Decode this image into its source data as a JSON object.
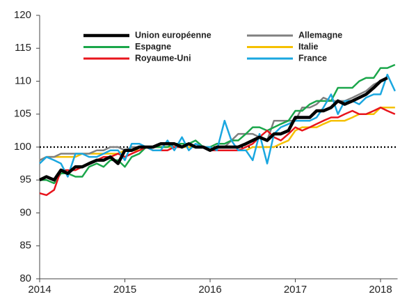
{
  "chart_data": {
    "type": "line",
    "x": [
      2014,
      2014.08,
      2014.17,
      2014.25,
      2014.33,
      2014.42,
      2014.5,
      2014.58,
      2014.67,
      2014.75,
      2014.83,
      2014.92,
      2015,
      2015.08,
      2015.17,
      2015.25,
      2015.33,
      2015.42,
      2015.5,
      2015.58,
      2015.67,
      2015.75,
      2015.83,
      2015.92,
      2016,
      2016.08,
      2016.17,
      2016.25,
      2016.33,
      2016.42,
      2016.5,
      2016.58,
      2016.67,
      2016.75,
      2016.83,
      2016.92,
      2017,
      2017.08,
      2017.17,
      2017.25,
      2017.33,
      2017.42,
      2017.5,
      2017.58,
      2017.67,
      2017.75,
      2017.83,
      2017.92,
      2018,
      2018.08,
      2018.17
    ],
    "series": [
      {
        "name": "Union européenne",
        "color": "#000000",
        "values": [
          95,
          95.5,
          95,
          96.5,
          96,
          97,
          97,
          97.5,
          98,
          98,
          98.5,
          97.5,
          99.5,
          99.5,
          100,
          100,
          100,
          100.5,
          100.5,
          100.5,
          100,
          100.5,
          100,
          100,
          99.5,
          100,
          100,
          100,
          100,
          100.5,
          101,
          101.5,
          101,
          102,
          102,
          102.5,
          104.5,
          104.5,
          104.5,
          105.5,
          105.5,
          106,
          107,
          106.5,
          107,
          107.5,
          108,
          109,
          110,
          110.5,
          null
        ]
      },
      {
        "name": "Allemagne",
        "color": "#808080",
        "values": [
          98,
          98.5,
          98.5,
          99,
          99,
          99,
          99,
          99,
          99.5,
          99.5,
          100,
          100,
          99.5,
          100,
          100,
          100,
          100,
          100.5,
          100.5,
          100,
          100,
          100.5,
          100,
          100,
          99.5,
          100,
          100,
          101,
          102,
          102,
          102,
          101.5,
          101,
          104,
          104,
          104,
          104,
          106,
          106,
          106.5,
          107.5,
          107,
          107,
          107,
          107.5,
          108,
          108.5,
          109.5,
          110,
          110.5,
          null
        ]
      },
      {
        "name": "Espagne",
        "color": "#1aa64a",
        "values": [
          95,
          95,
          94.5,
          96,
          96,
          95.5,
          95.5,
          97,
          97.5,
          97,
          98,
          98,
          97,
          98.5,
          99,
          100,
          100,
          100,
          100,
          100.5,
          100.5,
          100.5,
          101,
          100,
          100,
          100.5,
          100.5,
          101,
          101,
          102,
          103,
          103,
          102.5,
          103,
          103.5,
          104,
          105.5,
          105.5,
          106.5,
          107,
          107,
          107,
          109,
          109,
          109,
          110,
          110.5,
          110.5,
          112,
          112,
          112.5
        ]
      },
      {
        "name": "Italie",
        "color": "#f5c000",
        "values": [
          98,
          98.5,
          98.5,
          98.5,
          98.5,
          98.5,
          99,
          99,
          99,
          99,
          99,
          99,
          99.5,
          99.5,
          99.5,
          100,
          100,
          100,
          100,
          100,
          100,
          100,
          100,
          100,
          99.5,
          99.5,
          99.5,
          99.5,
          99.5,
          99.5,
          100,
          100,
          100,
          100,
          100.5,
          101,
          102.5,
          103,
          103,
          103,
          103.5,
          104,
          104,
          104,
          104.5,
          105,
          105,
          105,
          106,
          106,
          106
        ]
      },
      {
        "name": "Royaume-Uni",
        "color": "#e8141c",
        "values": [
          93,
          92.7,
          93.5,
          96.5,
          96.5,
          96.5,
          97,
          97.5,
          98,
          98.5,
          98.5,
          99,
          98.5,
          99,
          99.5,
          100,
          99.5,
          99.5,
          99.5,
          100,
          100,
          100.5,
          100,
          100,
          99.5,
          99.5,
          99.5,
          99.5,
          99.5,
          100,
          100.5,
          101.5,
          102.5,
          101.5,
          101,
          102,
          103,
          102.5,
          103,
          103.5,
          104,
          104.5,
          104.5,
          105,
          105.5,
          105,
          105,
          105.5,
          106,
          105.5,
          105
        ]
      },
      {
        "name": "France",
        "color": "#1aa7e0",
        "values": [
          97.5,
          98.5,
          98,
          97.5,
          95.5,
          99,
          99,
          98.5,
          98.5,
          99,
          99.5,
          99.5,
          98,
          100.5,
          100.5,
          100,
          99.5,
          99.5,
          101,
          99.5,
          101.5,
          99.5,
          100.5,
          100,
          100,
          99.5,
          104,
          101,
          99.5,
          99.5,
          98,
          102,
          97.5,
          102,
          103,
          103.5,
          104,
          104,
          104,
          104.5,
          106,
          108,
          105,
          107,
          107,
          106.5,
          107.5,
          108,
          108,
          111,
          108.5
        ]
      }
    ],
    "reference": 100,
    "xlim": [
      2014,
      2018.2
    ],
    "xticks": [
      2014,
      2015,
      2016,
      2017,
      2018
    ],
    "ylim": [
      80,
      120
    ],
    "yticks": [
      80,
      85,
      90,
      95,
      100,
      105,
      110,
      115,
      120
    ],
    "grid": false,
    "legend": "top"
  }
}
